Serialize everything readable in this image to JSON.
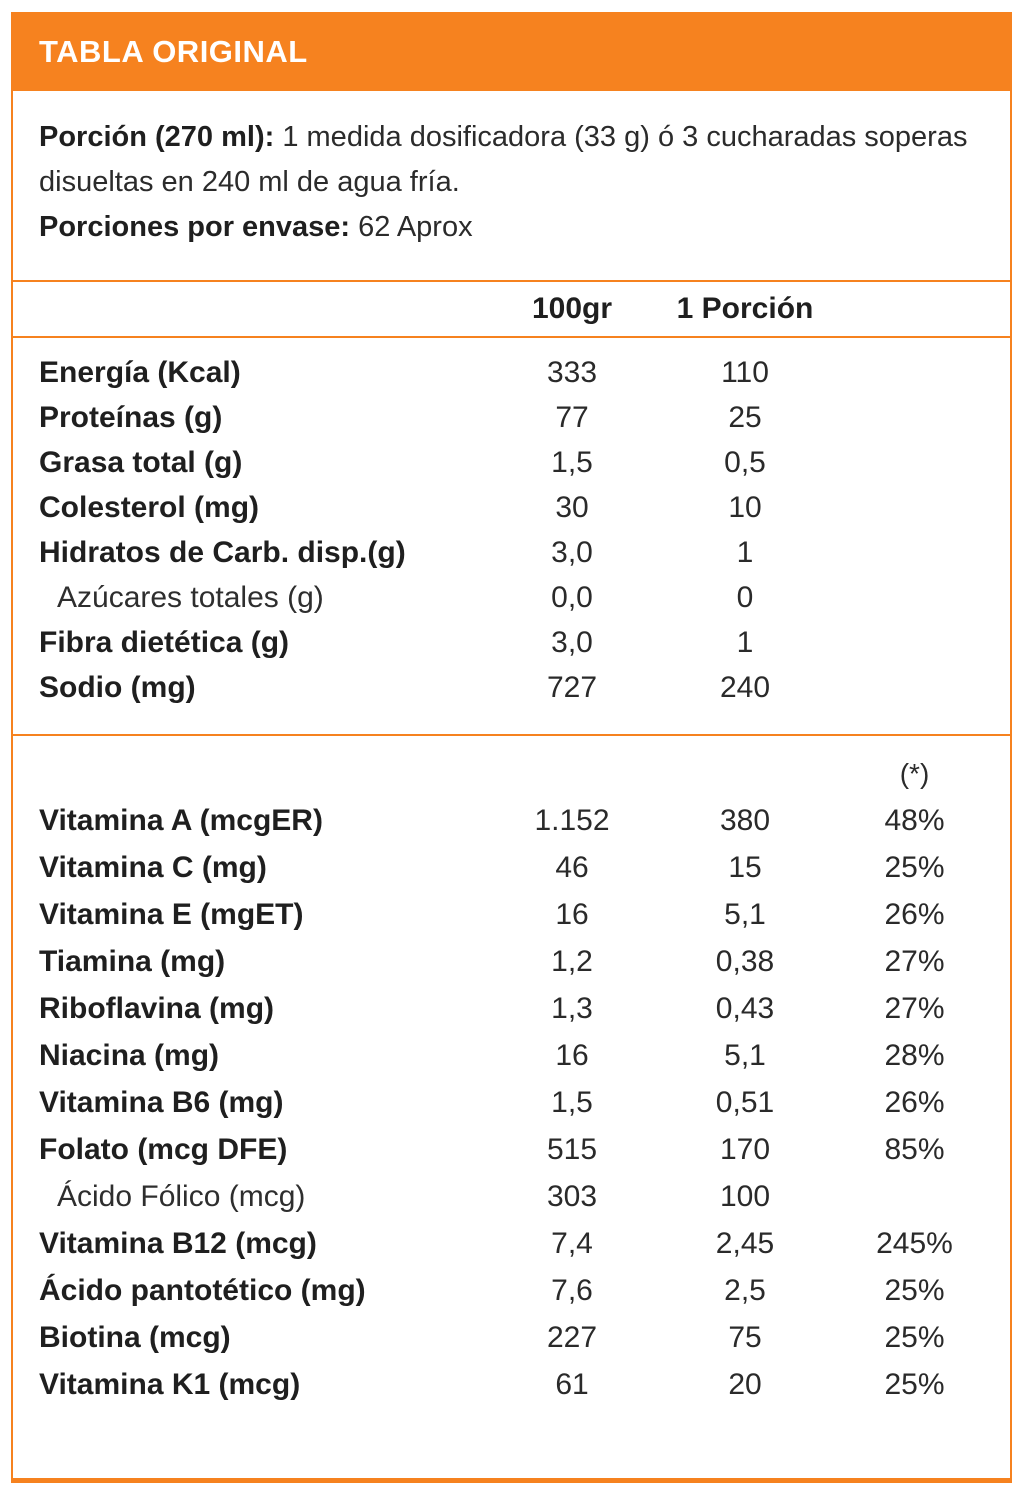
{
  "header": {
    "title": "TABLA ORIGINAL"
  },
  "serving": {
    "portion_label": "Porción (270 ml):",
    "portion_text": "1 medida dosificadora (33 g) ó 3 cucharadas soperas disueltas en 240 ml de agua fría.",
    "servings_label": "Porciones por envase:",
    "servings_value": "62 Aprox"
  },
  "columns": {
    "col_100g": "100gr",
    "col_portion": "1 Porción",
    "col_percent": "(*)"
  },
  "nutrients": [
    {
      "label": "Energía (Kcal)",
      "v100": "333",
      "vp": "110",
      "pct": "",
      "bold": true,
      "indent": false
    },
    {
      "label": "Proteínas (g)",
      "v100": "77",
      "vp": "25",
      "pct": "",
      "bold": true,
      "indent": false
    },
    {
      "label": "Grasa total (g)",
      "v100": "1,5",
      "vp": "0,5",
      "pct": "",
      "bold": true,
      "indent": false
    },
    {
      "label": "Colesterol (mg)",
      "v100": "30",
      "vp": "10",
      "pct": "",
      "bold": true,
      "indent": false
    },
    {
      "label": "Hidratos de Carb. disp.(g)",
      "v100": "3,0",
      "vp": "1",
      "pct": "",
      "bold": true,
      "indent": false
    },
    {
      "label": "Azúcares totales (g)",
      "v100": "0,0",
      "vp": "0",
      "pct": "",
      "bold": false,
      "indent": true
    },
    {
      "label": "Fibra dietética (g)",
      "v100": "3,0",
      "vp": "1",
      "pct": "",
      "bold": true,
      "indent": false
    },
    {
      "label": "Sodio (mg)",
      "v100": "727",
      "vp": "240",
      "pct": "",
      "bold": true,
      "indent": false
    }
  ],
  "vitamins": [
    {
      "label": "Vitamina A (mcgER)",
      "v100": "1.152",
      "vp": "380",
      "pct": "48%",
      "bold": true,
      "indent": false
    },
    {
      "label": "Vitamina C (mg)",
      "v100": "46",
      "vp": "15",
      "pct": "25%",
      "bold": true,
      "indent": false
    },
    {
      "label": "Vitamina E (mgET)",
      "v100": "16",
      "vp": "5,1",
      "pct": "26%",
      "bold": true,
      "indent": false
    },
    {
      "label": "Tiamina (mg)",
      "v100": "1,2",
      "vp": "0,38",
      "pct": "27%",
      "bold": true,
      "indent": false
    },
    {
      "label": "Riboflavina (mg)",
      "v100": "1,3",
      "vp": "0,43",
      "pct": "27%",
      "bold": true,
      "indent": false
    },
    {
      "label": "Niacina (mg)",
      "v100": "16",
      "vp": "5,1",
      "pct": "28%",
      "bold": true,
      "indent": false
    },
    {
      "label": "Vitamina B6 (mg)",
      "v100": "1,5",
      "vp": "0,51",
      "pct": "26%",
      "bold": true,
      "indent": false
    },
    {
      "label": "Folato (mcg DFE)",
      "v100": "515",
      "vp": "170",
      "pct": "85%",
      "bold": true,
      "indent": false
    },
    {
      "label": "Ácido Fólico (mcg)",
      "v100": "303",
      "vp": "100",
      "pct": "",
      "bold": false,
      "indent": true
    },
    {
      "label": "Vitamina B12 (mcg)",
      "v100": "7,4",
      "vp": "2,45",
      "pct": "245%",
      "bold": true,
      "indent": false
    },
    {
      "label": "Ácido pantotético (mg)",
      "v100": "7,6",
      "vp": "2,5",
      "pct": "25%",
      "bold": true,
      "indent": false
    },
    {
      "label": "Biotina (mcg)",
      "v100": "227",
      "vp": "75",
      "pct": "25%",
      "bold": true,
      "indent": false
    },
    {
      "label": "Vitamina K1 (mcg)",
      "v100": "61",
      "vp": "20",
      "pct": "25%",
      "bold": true,
      "indent": false
    }
  ],
  "colors": {
    "accent_orange": "#F6821F",
    "header_text": "#FFFFFF",
    "body_text": "#262626"
  }
}
